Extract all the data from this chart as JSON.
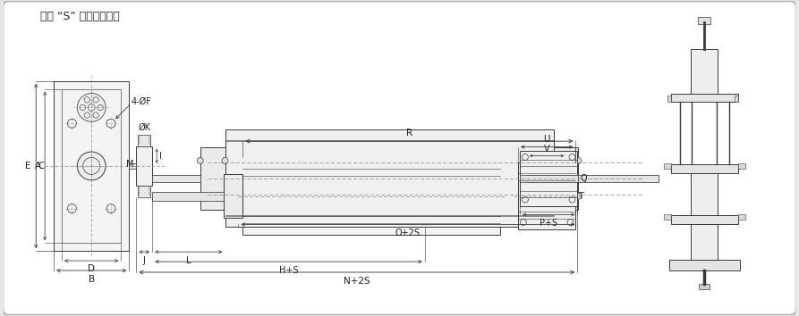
{
  "note_text": "注： “S” 為缸的總行程",
  "labels": {
    "F": "4-ØF",
    "K": "ØK",
    "M": "M",
    "A": "A",
    "B": "B",
    "C": "C",
    "D": "D",
    "E": "E",
    "I": "I",
    "J": "J",
    "L": "L",
    "H": "H+S",
    "N": "N+2S",
    "R": "R",
    "U": "U",
    "V": "V",
    "T": "T",
    "Q": "Q",
    "P": "P+S",
    "O": "O+2S"
  },
  "line_color": "#3a3a3a",
  "center_line_color": "#888888",
  "dim_color": "#3a3a3a",
  "bg_color": "#e6e6e6",
  "face_color": "#f8f8f8",
  "fs_note": 9.0,
  "fs_label": 7.5,
  "fs_dim": 7.0
}
